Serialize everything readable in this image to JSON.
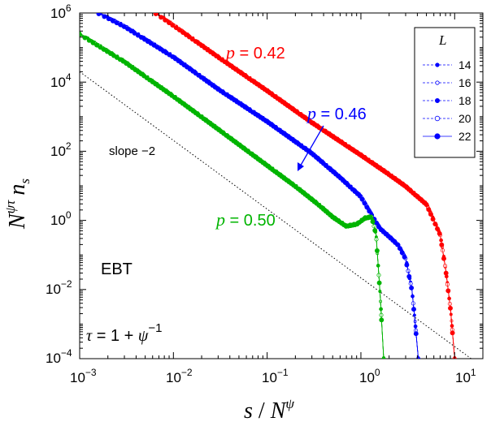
{
  "chart_data": {
    "type": "line",
    "xlabel": {
      "base": "s",
      "sep": " / ",
      "sym": "N",
      "exp": "ψ"
    },
    "ylabel": {
      "sym": "N",
      "exp": "ψτ",
      "tail": "n",
      "sub": "s"
    },
    "xscale": "log",
    "yscale": "log",
    "xlim": [
      0.001,
      20
    ],
    "ylim": [
      0.0001,
      1000000
    ],
    "x_ticks": [
      {
        "value": 0.001,
        "base": "10",
        "exp": "−3"
      },
      {
        "value": 0.01,
        "base": "10",
        "exp": "−2"
      },
      {
        "value": 0.1,
        "base": "10",
        "exp": "−1"
      },
      {
        "value": 1,
        "base": "10",
        "exp": "0"
      },
      {
        "value": 10,
        "base": "10",
        "exp": "1"
      }
    ],
    "y_ticks": [
      {
        "value": 0.0001,
        "base": "10",
        "exp": "−4"
      },
      {
        "value": 0.01,
        "base": "10",
        "exp": "−2"
      },
      {
        "value": 1,
        "base": "10",
        "exp": "0"
      },
      {
        "value": 100,
        "base": "10",
        "exp": "2"
      },
      {
        "value": 10000,
        "base": "10",
        "exp": "4"
      },
      {
        "value": 1000000,
        "base": "10",
        "exp": "6"
      }
    ],
    "legend": {
      "title": "L",
      "position": "top-right",
      "entries": [
        "14",
        "16",
        "18",
        "20",
        "22"
      ]
    },
    "colors": {
      "p042": "#ff0000",
      "p046": "#0000ff",
      "p050": "#00b400",
      "reference": "#000000"
    },
    "series": [
      {
        "name": "p = 0.42",
        "color": "#ff0000",
        "points": [
          [
            0.0065,
            1000000
          ],
          [
            0.01,
            450000
          ],
          [
            0.03,
            55000
          ],
          [
            0.1,
            5800
          ],
          [
            0.3,
            700
          ],
          [
            1,
            80
          ],
          [
            2,
            22
          ],
          [
            3,
            10
          ],
          [
            5,
            3
          ],
          [
            7,
            0.4
          ],
          [
            8,
            0.04
          ],
          [
            9,
            0.003
          ],
          [
            9.6,
            0.0004
          ],
          [
            10,
            0.0001
          ]
        ]
      },
      {
        "name": "p = 0.46",
        "color": "#0000ff",
        "points": [
          [
            0.0016,
            1000000
          ],
          [
            0.003,
            420000
          ],
          [
            0.01,
            55000
          ],
          [
            0.03,
            6500
          ],
          [
            0.1,
            750
          ],
          [
            0.3,
            90
          ],
          [
            0.6,
            18
          ],
          [
            1,
            5
          ],
          [
            1.3,
            1.5
          ],
          [
            1.6,
            0.6
          ],
          [
            2,
            0.35
          ],
          [
            2.5,
            0.2
          ],
          [
            3,
            0.08
          ],
          [
            3.5,
            0.01
          ],
          [
            3.8,
            0.001
          ],
          [
            4.1,
            0.0001
          ]
        ]
      },
      {
        "name": "p = 0.50",
        "color": "#00b400",
        "points": [
          [
            0.001,
            250000
          ],
          [
            0.003,
            40000
          ],
          [
            0.01,
            4000
          ],
          [
            0.03,
            450
          ],
          [
            0.1,
            40
          ],
          [
            0.2,
            10
          ],
          [
            0.35,
            3
          ],
          [
            0.5,
            1.3
          ],
          [
            0.7,
            0.7
          ],
          [
            0.9,
            0.8
          ],
          [
            1.1,
            1.2
          ],
          [
            1.3,
            1.3
          ],
          [
            1.45,
            0.4
          ],
          [
            1.6,
            0.008
          ],
          [
            1.75,
            0.0001
          ]
        ]
      },
      {
        "name": "slope −2",
        "color": "#000000",
        "style": "dotted",
        "points": [
          [
            0.001,
            20000
          ],
          [
            15,
            0.0001
          ]
        ]
      }
    ],
    "annotations": {
      "p042": {
        "sym": "p",
        "text": " = 0.42"
      },
      "p046": {
        "sym": "p",
        "text": " = 0.46"
      },
      "p050": {
        "sym": "p",
        "text": " = 0.50"
      },
      "slope": "slope −2",
      "model": "EBT",
      "tau": {
        "sym": "τ",
        "mid": " = 1 + ",
        "sym2": "ψ",
        "exp": "−1"
      }
    }
  }
}
